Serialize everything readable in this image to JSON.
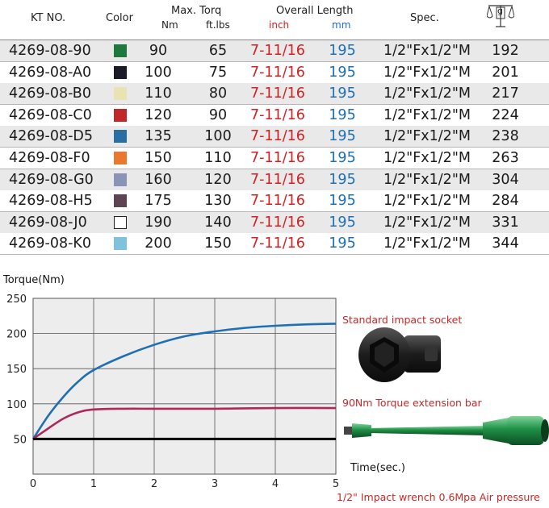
{
  "header": {
    "kt_no": "KT NO.",
    "color": "Color",
    "max_torq": "Max. Torq",
    "nm": "Nm",
    "ftlbs": "ft.lbs",
    "overall_length": "Overall Length",
    "inch": "inch",
    "mm": "mm",
    "spec": "Spec.",
    "weight_unit": "g",
    "weight_icon": "scale-icon"
  },
  "rows": [
    {
      "kt": "4269-08-90",
      "color": "#1e7a3c",
      "nm": "90",
      "ft": "65",
      "inch": "7-11/16",
      "mm": "195",
      "spec": "1/2\"Fx1/2\"M",
      "weight": "192"
    },
    {
      "kt": "4269-08-A0",
      "color": "#1a1a28",
      "nm": "100",
      "ft": "75",
      "inch": "7-11/16",
      "mm": "195",
      "spec": "1/2\"Fx1/2\"M",
      "weight": "201"
    },
    {
      "kt": "4269-08-B0",
      "color": "#e8e3b0",
      "nm": "110",
      "ft": "80",
      "inch": "7-11/16",
      "mm": "195",
      "spec": "1/2\"Fx1/2\"M",
      "weight": "217"
    },
    {
      "kt": "4269-08-C0",
      "color": "#c0282a",
      "nm": "120",
      "ft": "90",
      "inch": "7-11/16",
      "mm": "195",
      "spec": "1/2\"Fx1/2\"M",
      "weight": "224"
    },
    {
      "kt": "4269-08-D5",
      "color": "#2a6ea6",
      "nm": "135",
      "ft": "100",
      "inch": "7-11/16",
      "mm": "195",
      "spec": "1/2\"Fx1/2\"M",
      "weight": "238"
    },
    {
      "kt": "4269-08-F0",
      "color": "#e8792e",
      "nm": "150",
      "ft": "110",
      "inch": "7-11/16",
      "mm": "195",
      "spec": "1/2\"Fx1/2\"M",
      "weight": "263"
    },
    {
      "kt": "4269-08-G0",
      "color": "#8a93b8",
      "nm": "160",
      "ft": "120",
      "inch": "7-11/16",
      "mm": "195",
      "spec": "1/2\"Fx1/2\"M",
      "weight": "304"
    },
    {
      "kt": "4269-08-H5",
      "color": "#5e4452",
      "nm": "175",
      "ft": "130",
      "inch": "7-11/16",
      "mm": "195",
      "spec": "1/2\"Fx1/2\"M",
      "weight": "284"
    },
    {
      "kt": "4269-08-J0",
      "color": "#ffffff",
      "nm": "190",
      "ft": "140",
      "inch": "7-11/16",
      "mm": "195",
      "spec": "1/2\"Fx1/2\"M",
      "weight": "331"
    },
    {
      "kt": "4269-08-K0",
      "color": "#7ec2db",
      "nm": "200",
      "ft": "150",
      "inch": "7-11/16",
      "mm": "195",
      "spec": "1/2\"Fx1/2\"M",
      "weight": "344"
    }
  ],
  "chart_data": {
    "type": "line",
    "title": "",
    "ylabel": "Torque(Nm)",
    "xlabel": "Time(sec.)",
    "xlim": [
      0,
      5
    ],
    "ylim": [
      0,
      250
    ],
    "x_ticks": [
      "0",
      "1",
      "2",
      "3",
      "4",
      "5"
    ],
    "y_ticks": [
      "50",
      "100",
      "150",
      "200",
      "250"
    ],
    "grid": true,
    "series": [
      {
        "name": "Standard impact socket",
        "color": "#1f6fb5",
        "x": [
          0,
          0.25,
          0.5,
          0.75,
          1,
          1.5,
          2,
          2.5,
          3,
          3.5,
          4,
          4.5,
          5
        ],
        "y": [
          50,
          83,
          110,
          132,
          148,
          168,
          184,
          196,
          203,
          208,
          211,
          213,
          214
        ]
      },
      {
        "name": "90Nm Torque extension bar",
        "color": "#b0275a",
        "x": [
          0,
          0.25,
          0.5,
          0.75,
          1,
          1.5,
          2,
          3,
          4,
          5
        ],
        "y": [
          50,
          65,
          79,
          88,
          92,
          93,
          93,
          93,
          94,
          94
        ]
      },
      {
        "color": "#000000",
        "x": [
          0,
          5
        ],
        "y": [
          50,
          50
        ]
      }
    ],
    "note": "1/2\" Impact wrench 0.6Mpa Air pressure"
  }
}
